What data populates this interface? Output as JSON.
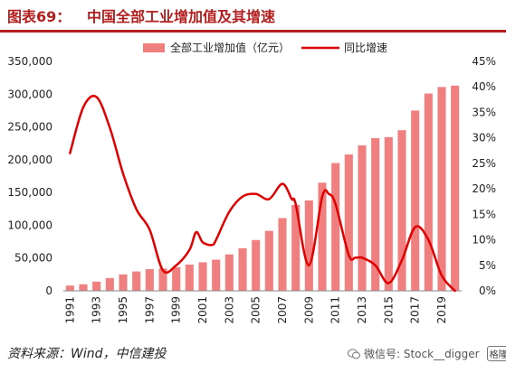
{
  "figure": {
    "label": "图表69：",
    "title": "中国全部工业增加值及其增速",
    "source": "资料来源：Wind，中信建投"
  },
  "watermark": {
    "text": "微信号: Stock__digger",
    "badge": "格隆汇",
    "icon": "wechat-icon"
  },
  "colors": {
    "bar": "#f08080",
    "line": "#e00000",
    "title": "#b41e1e"
  },
  "chart_data": {
    "type": "bar",
    "years": [
      1991,
      1992,
      1993,
      1994,
      1995,
      1996,
      1997,
      1998,
      1999,
      2000,
      2001,
      2002,
      2003,
      2004,
      2005,
      2006,
      2007,
      2008,
      2009,
      2010,
      2011,
      2012,
      2013,
      2014,
      2015,
      2016,
      2017,
      2018,
      2019,
      2020
    ],
    "x_tick_labels": [
      "1991",
      "1993",
      "1995",
      "1997",
      "1999",
      "2001",
      "2003",
      "2005",
      "2007",
      "2009",
      "2011",
      "2013",
      "2015",
      "2017",
      "2019"
    ],
    "series": [
      {
        "name": "全部工业增加值（亿元）",
        "type": "bar",
        "axis": "left",
        "values": [
          8000,
          10000,
          14000,
          19500,
          25000,
          29500,
          33000,
          34000,
          36000,
          40000,
          43500,
          47500,
          55500,
          65000,
          77500,
          91500,
          111000,
          131000,
          138000,
          165000,
          195000,
          208000,
          222000,
          233000,
          234500,
          245000,
          275000,
          301000,
          311000,
          313000
        ]
      },
      {
        "name": "同比增速",
        "type": "line",
        "axis": "right",
        "points": [
          [
            1991,
            27
          ],
          [
            1992,
            36
          ],
          [
            1993,
            38
          ],
          [
            1994,
            32
          ],
          [
            1995,
            23
          ],
          [
            1996,
            16
          ],
          [
            1997,
            12
          ],
          [
            1998,
            4
          ],
          [
            1999,
            5
          ],
          [
            2000,
            8
          ],
          [
            2000.5,
            11.5
          ],
          [
            2001,
            9.5
          ],
          [
            2001.7,
            9
          ],
          [
            2002,
            10
          ],
          [
            2003,
            15.5
          ],
          [
            2004,
            18.5
          ],
          [
            2005,
            19
          ],
          [
            2006,
            18
          ],
          [
            2007,
            21
          ],
          [
            2007.7,
            18
          ],
          [
            2008,
            17
          ],
          [
            2009,
            5
          ],
          [
            2010,
            18.5
          ],
          [
            2010.5,
            19
          ],
          [
            2011,
            17
          ],
          [
            2012,
            7
          ],
          [
            2012.5,
            6.5
          ],
          [
            2013,
            6.5
          ],
          [
            2014,
            5
          ],
          [
            2015,
            1.5
          ],
          [
            2016,
            6
          ],
          [
            2017,
            12.5
          ],
          [
            2018,
            10
          ],
          [
            2019,
            3
          ],
          [
            2020,
            0
          ]
        ]
      }
    ],
    "y_left": {
      "ticks": [
        0,
        50000,
        100000,
        150000,
        200000,
        250000,
        300000,
        350000
      ],
      "tick_labels": [
        "0",
        "50,000",
        "100,000",
        "150,000",
        "200,000",
        "250,000",
        "300,000",
        "350,000"
      ],
      "range": [
        0,
        350000
      ]
    },
    "y_right": {
      "ticks": [
        0,
        5,
        10,
        15,
        20,
        25,
        30,
        35,
        40,
        45
      ],
      "tick_labels": [
        "0%",
        "5%",
        "10%",
        "15%",
        "20%",
        "25%",
        "30%",
        "35%",
        "40%",
        "45%"
      ],
      "range": [
        0,
        45
      ]
    },
    "legend": {
      "placement": "top",
      "entries": [
        "全部工业增加值（亿元）",
        "同比增速"
      ]
    },
    "grid": false
  }
}
